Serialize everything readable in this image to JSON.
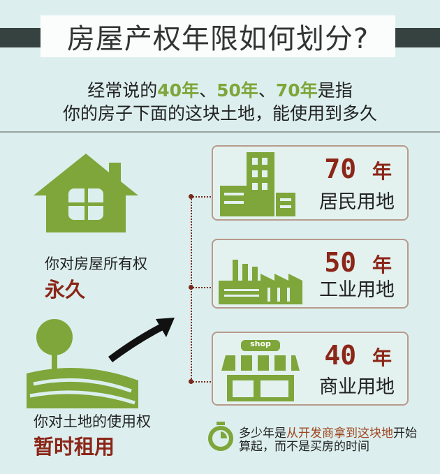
{
  "title": "房屋产权年限如何划分?",
  "subtitle": {
    "line1_pre": "经常说的",
    "y40": "40年",
    "sep1": "、",
    "y50": "50年",
    "sep2": "、",
    "y70": "70年",
    "line1_post": "是指",
    "line2": "你的房子下面的这块土地，能使用到多久"
  },
  "left": {
    "house_label": "你对房屋所有权",
    "house_value": "永久",
    "land_label": "你对土地的使用权",
    "land_value": "暂时租用"
  },
  "cards": [
    {
      "number": "70",
      "unit": "年",
      "use": "居民用地",
      "icon": "residential-buildings-icon"
    },
    {
      "number": "50",
      "unit": "年",
      "use": "工业用地",
      "icon": "factory-icon"
    },
    {
      "number": "40",
      "unit": "年",
      "use": "商业用地",
      "icon": "shop-icon",
      "sign": "shop"
    }
  ],
  "note": {
    "pre": "多少年是",
    "highlight": "从开发商拿到这块地",
    "post": "开始算起，而不是买房的时间",
    "icon": "stopwatch-icon"
  },
  "colors": {
    "green": "#7ea63a",
    "accent": "#8b2618",
    "dark_bar": "#364240",
    "background": "#dcefee"
  }
}
